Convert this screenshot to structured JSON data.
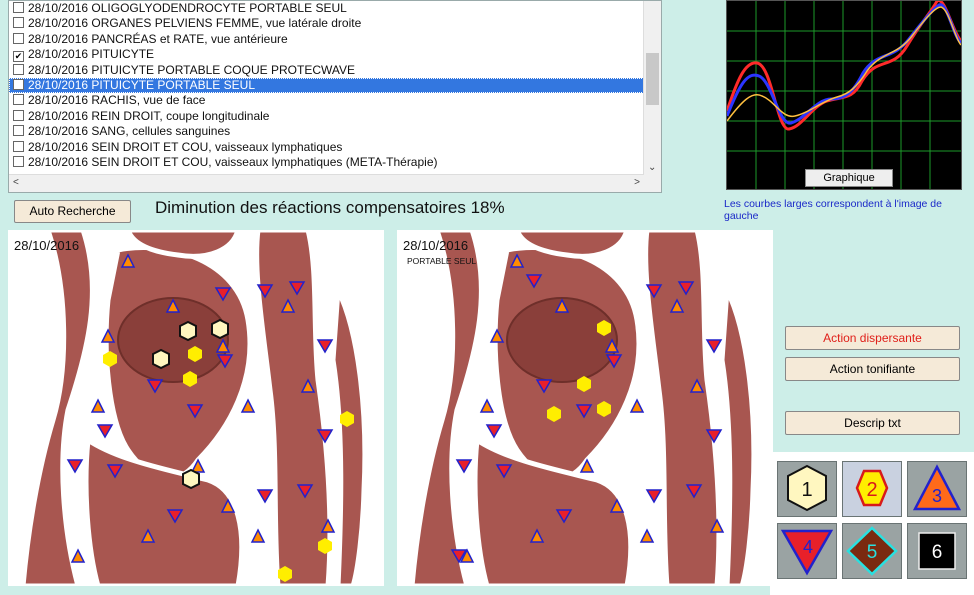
{
  "list": {
    "items": [
      {
        "text": "28/10/2016  OLIGOGLYODENDROCYTE  PORTABLE SEUL",
        "checked": false
      },
      {
        "text": "28/10/2016  ORGANES PELVIENS FEMME, vue latérale droite",
        "checked": false
      },
      {
        "text": "28/10/2016  PANCRÉAS et RATE, vue antérieure",
        "checked": false
      },
      {
        "text": "28/10/2016  PITUICYTE",
        "checked": true
      },
      {
        "text": "28/10/2016  PITUICYTE  PORTABLE COQUE PROTECWAVE",
        "checked": false
      },
      {
        "text": "28/10/2016  PITUICYTE  PORTABLE SEUL",
        "checked": false,
        "selected": true
      },
      {
        "text": "28/10/2016  RACHIS, vue de face",
        "checked": false
      },
      {
        "text": "28/10/2016  REIN DROIT, coupe longitudinale",
        "checked": false
      },
      {
        "text": "28/10/2016  SANG, cellules sanguines",
        "checked": false
      },
      {
        "text": "28/10/2016  SEIN DROIT ET COU, vaisseaux lymphatiques",
        "checked": false
      },
      {
        "text": "28/10/2016  SEIN DROIT ET COU, vaisseaux lymphatiques  (META-Thérapie)",
        "checked": false
      }
    ]
  },
  "buttons": {
    "auto_search": "Auto Recherche",
    "graph": "Graphique",
    "dispersing": "Action dispersante",
    "tonifying": "Action tonifiante",
    "descrip": "Descrip txt"
  },
  "headline": "Diminution des réactions compensatoires 18%",
  "graph_note": "Les courbes larges correspondent à l'image de gauche",
  "panels": {
    "left": {
      "date": "28/10/2016"
    },
    "right": {
      "date": "28/10/2016",
      "subtitle": "PORTABLE SEUL"
    }
  },
  "legend": {
    "items": [
      {
        "number": "1",
        "shape": "hexagon-yellow-black-border"
      },
      {
        "number": "2",
        "shape": "hexagon-yellow-red-border"
      },
      {
        "number": "3",
        "shape": "triangle-up-orange-blue-border"
      },
      {
        "number": "4",
        "shape": "triangle-down-red-blue-border"
      },
      {
        "number": "5",
        "shape": "diamond-brown-cyan-border"
      },
      {
        "number": "6",
        "shape": "square-black"
      }
    ]
  },
  "colors": {
    "background": "#cdeee8",
    "selection": "#3377e0",
    "button": "#f5ead8",
    "tissue": "#a85650"
  }
}
